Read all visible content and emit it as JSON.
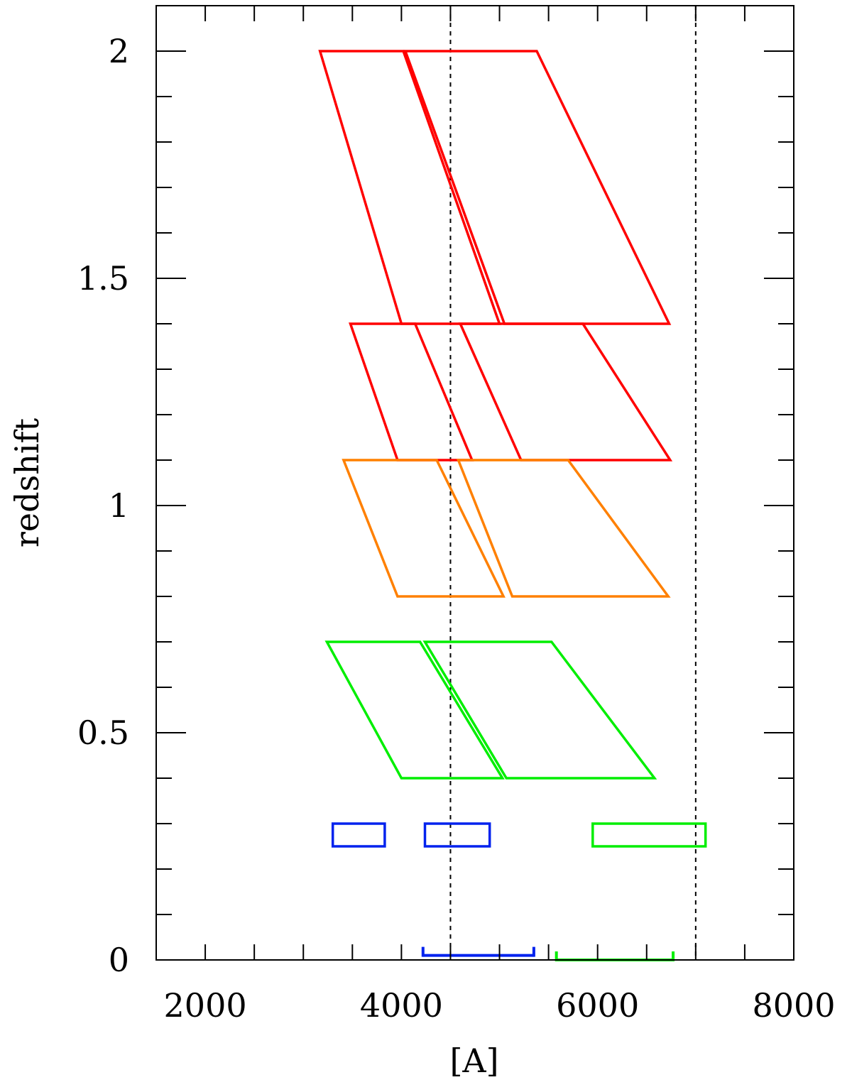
{
  "chart_data": {
    "type": "line",
    "title": "",
    "xlabel": "[A]",
    "ylabel": "redshift",
    "xlim": [
      1500,
      8000
    ],
    "ylim": [
      0,
      2.1
    ],
    "x_ticks_major": [
      2000,
      4000,
      6000,
      8000
    ],
    "x_tick_labels": [
      "2000",
      "4000",
      "6000",
      "8000"
    ],
    "x_ticks_minor": [
      2500,
      3000,
      3500,
      4500,
      5000,
      5500,
      6500,
      7000,
      7500
    ],
    "y_ticks_major": [
      0,
      0.5,
      1,
      1.5,
      2
    ],
    "y_tick_labels": [
      "0",
      "0.5",
      "1",
      "1.5",
      "2"
    ],
    "y_ticks_minor": [
      0.1,
      0.2,
      0.3,
      0.4,
      0.6,
      0.7,
      0.8,
      0.9,
      1.1,
      1.2,
      1.3,
      1.4,
      1.6,
      1.7,
      1.8,
      1.9
    ],
    "grid": false,
    "reference_lines": [
      {
        "x": 4500,
        "style": "dotted",
        "color": "#000000"
      },
      {
        "x": 7000,
        "style": "dotted",
        "color": "#000000"
      }
    ],
    "shapes": [
      {
        "name": "red-high-left",
        "color": "#ff0000",
        "points": [
          [
            3170,
            2.0
          ],
          [
            4020,
            2.0
          ],
          [
            5000,
            1.4
          ],
          [
            4000,
            1.4
          ]
        ]
      },
      {
        "name": "red-high-right",
        "color": "#ff0000",
        "points": [
          [
            4040,
            2.0
          ],
          [
            5380,
            2.0
          ],
          [
            6730,
            1.4
          ],
          [
            5050,
            1.4
          ]
        ]
      },
      {
        "name": "red-mid-left",
        "color": "#ff0000",
        "points": [
          [
            3480,
            1.4
          ],
          [
            4140,
            1.4
          ],
          [
            4720,
            1.1
          ],
          [
            3960,
            1.1
          ]
        ]
      },
      {
        "name": "red-mid-right",
        "color": "#ff0000",
        "points": [
          [
            4600,
            1.4
          ],
          [
            5850,
            1.4
          ],
          [
            6740,
            1.1
          ],
          [
            5220,
            1.1
          ]
        ]
      },
      {
        "name": "orange-left",
        "color": "#ff8000",
        "points": [
          [
            3410,
            1.1
          ],
          [
            4360,
            1.1
          ],
          [
            5040,
            0.8
          ],
          [
            3960,
            0.8
          ]
        ]
      },
      {
        "name": "orange-right",
        "color": "#ff8000",
        "points": [
          [
            4580,
            1.1
          ],
          [
            5700,
            1.1
          ],
          [
            6720,
            0.8
          ],
          [
            5130,
            0.8
          ]
        ]
      },
      {
        "name": "green-left",
        "color": "#00ee00",
        "points": [
          [
            3240,
            0.7
          ],
          [
            4190,
            0.7
          ],
          [
            5030,
            0.4
          ],
          [
            4000,
            0.4
          ]
        ]
      },
      {
        "name": "green-right",
        "color": "#00ee00",
        "points": [
          [
            4240,
            0.7
          ],
          [
            5530,
            0.7
          ],
          [
            6580,
            0.4
          ],
          [
            5070,
            0.4
          ]
        ]
      },
      {
        "name": "blue-box-left",
        "color": "#0022ee",
        "points": [
          [
            3300,
            0.3
          ],
          [
            3830,
            0.3
          ],
          [
            3830,
            0.25
          ],
          [
            3300,
            0.25
          ]
        ]
      },
      {
        "name": "blue-box-right",
        "color": "#0022ee",
        "points": [
          [
            4240,
            0.3
          ],
          [
            4900,
            0.3
          ],
          [
            4900,
            0.25
          ],
          [
            4240,
            0.25
          ]
        ]
      },
      {
        "name": "green-box",
        "color": "#00ee00",
        "points": [
          [
            5950,
            0.3
          ],
          [
            7100,
            0.3
          ],
          [
            7100,
            0.25
          ],
          [
            5950,
            0.25
          ]
        ]
      }
    ],
    "ranges": [
      {
        "name": "blue-range",
        "color": "#0022ee",
        "x": [
          4220,
          5350
        ],
        "y": 0.01
      },
      {
        "name": "green-range",
        "color": "#00ee00",
        "x": [
          5580,
          6770
        ],
        "y": 0.0
      }
    ]
  }
}
